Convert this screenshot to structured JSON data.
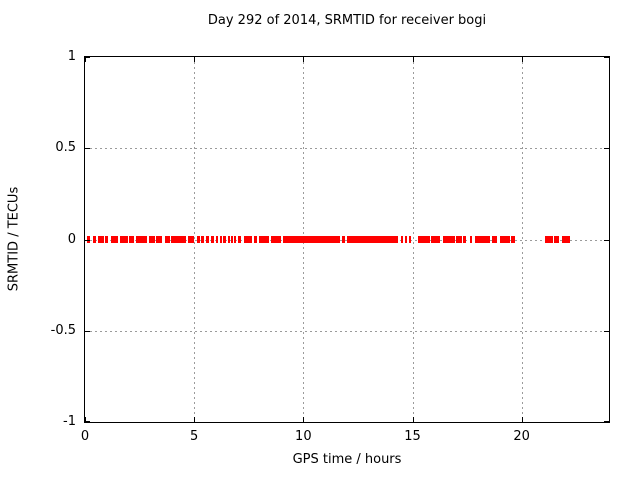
{
  "chart_data": {
    "type": "scatter",
    "title": "Day 292 of 2014, SRMTID for receiver bogi",
    "xlabel": "GPS time / hours",
    "ylabel": "SRMTID / TECUs",
    "xlim": [
      0,
      24
    ],
    "ylim": [
      -1,
      1
    ],
    "x_ticks": [
      0,
      5,
      10,
      15,
      20
    ],
    "x_tick_labels": [
      "0",
      "5",
      "10",
      "15",
      "20"
    ],
    "y_ticks": [
      1,
      0.5,
      0,
      -0.5,
      -1
    ],
    "y_tick_labels": [
      "1",
      "0.5",
      "0",
      "-0.5",
      "-1"
    ],
    "grid": true,
    "legend": "none",
    "colors": {
      "background": "#ffffff",
      "axis": "#000000",
      "grid": "#9b9b9b",
      "text": "#000000",
      "series": "#ff0000"
    },
    "series": [
      {
        "name": "SRMTID",
        "marker": "filled-square",
        "color": "#ff0000",
        "y_value": 0,
        "x_segments": [
          [
            0.09,
            0.23
          ],
          [
            0.37,
            0.5
          ],
          [
            0.59,
            0.87
          ],
          [
            0.91,
            1.05
          ],
          [
            1.19,
            1.51
          ],
          [
            1.6,
            1.97
          ],
          [
            2.01,
            2.24
          ],
          [
            2.33,
            2.83
          ],
          [
            2.93,
            3.2
          ],
          [
            3.25,
            3.52
          ],
          [
            3.66,
            3.89
          ],
          [
            3.93,
            4.62
          ],
          [
            4.71,
            4.98
          ],
          [
            5.12,
            5.26
          ],
          [
            5.3,
            5.44
          ],
          [
            5.53,
            5.67
          ],
          [
            5.76,
            5.9
          ],
          [
            5.99,
            6.08
          ],
          [
            6.17,
            6.26
          ],
          [
            6.31,
            6.44
          ],
          [
            6.53,
            6.63
          ],
          [
            6.67,
            6.76
          ],
          [
            6.8,
            6.9
          ],
          [
            6.99,
            7.17
          ],
          [
            7.27,
            7.63
          ],
          [
            7.72,
            7.9
          ],
          [
            7.95,
            8.45
          ],
          [
            8.5,
            9.0
          ],
          [
            9.05,
            11.7
          ],
          [
            11.79,
            11.93
          ],
          [
            12.02,
            14.35
          ],
          [
            14.49,
            14.58
          ],
          [
            14.67,
            14.76
          ],
          [
            14.85,
            14.95
          ],
          [
            15.26,
            15.8
          ],
          [
            15.84,
            16.27
          ],
          [
            16.41,
            16.96
          ],
          [
            17.0,
            17.25
          ],
          [
            17.31,
            17.45
          ],
          [
            17.64,
            17.73
          ],
          [
            17.87,
            18.3
          ],
          [
            18.34,
            18.55
          ],
          [
            18.64,
            18.87
          ],
          [
            19.0,
            19.45
          ],
          [
            19.5,
            19.7
          ],
          [
            21.07,
            21.45
          ],
          [
            21.49,
            21.71
          ],
          [
            21.85,
            22.2
          ]
        ]
      }
    ]
  }
}
